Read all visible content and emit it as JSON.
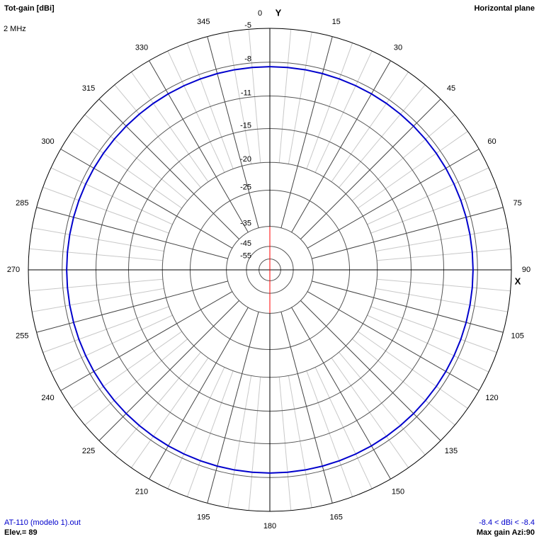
{
  "chart_data": {
    "type": "polar",
    "title": "Tot-gain [dBi]",
    "subtitle": "Horizontal plane",
    "frequency": "2 MHz",
    "y_axis_label": "Y",
    "x_axis_label": "X",
    "file": "AT-110 (modelo 1).out",
    "elevation": "Elev.= 89",
    "range_text": "-8.4 < dBi < -8.4",
    "max_gain": "Max gain Azi:90",
    "color": "#0000cc",
    "angle_ticks": [
      0,
      15,
      30,
      45,
      60,
      75,
      90,
      105,
      120,
      135,
      150,
      165,
      180,
      195,
      210,
      225,
      240,
      255,
      270,
      285,
      300,
      315,
      330,
      345
    ],
    "rticks": [
      -5,
      -8,
      -11,
      -15,
      -20,
      -25,
      -35,
      -45,
      -55
    ],
    "x": [
      0,
      5,
      10,
      15,
      20,
      25,
      30,
      35,
      40,
      45,
      50,
      55,
      60,
      65,
      70,
      75,
      80,
      85,
      90,
      95,
      100,
      105,
      110,
      115,
      120,
      125,
      130,
      135,
      140,
      145,
      150,
      155,
      160,
      165,
      170,
      175,
      180,
      185,
      190,
      195,
      200,
      205,
      210,
      215,
      220,
      225,
      230,
      235,
      240,
      245,
      250,
      255,
      260,
      265,
      270,
      275,
      280,
      285,
      290,
      295,
      300,
      305,
      310,
      315,
      320,
      325,
      330,
      335,
      340,
      345,
      350,
      355
    ],
    "values": [
      -8.4,
      -8.4,
      -8.4,
      -8.4,
      -8.4,
      -8.4,
      -8.4,
      -8.4,
      -8.4,
      -8.4,
      -8.4,
      -8.4,
      -8.4,
      -8.4,
      -8.4,
      -8.4,
      -8.4,
      -8.4,
      -8.4,
      -8.4,
      -8.4,
      -8.4,
      -8.4,
      -8.4,
      -8.4,
      -8.4,
      -8.4,
      -8.4,
      -8.4,
      -8.4,
      -8.4,
      -8.4,
      -8.4,
      -8.4,
      -8.4,
      -8.4,
      -8.4,
      -8.4,
      -8.4,
      -8.4,
      -8.4,
      -8.4,
      -8.4,
      -8.4,
      -8.4,
      -8.4,
      -8.4,
      -8.4,
      -8.4,
      -8.4,
      -8.4,
      -8.4,
      -8.4,
      -8.4,
      -8.4,
      -8.4,
      -8.4,
      -8.4,
      -8.4,
      -8.4,
      -8.4,
      -8.4,
      -8.4,
      -8.4,
      -8.4,
      -8.4,
      -8.4,
      -8.4,
      -8.4,
      -8.4,
      -8.4,
      -8.4
    ]
  }
}
